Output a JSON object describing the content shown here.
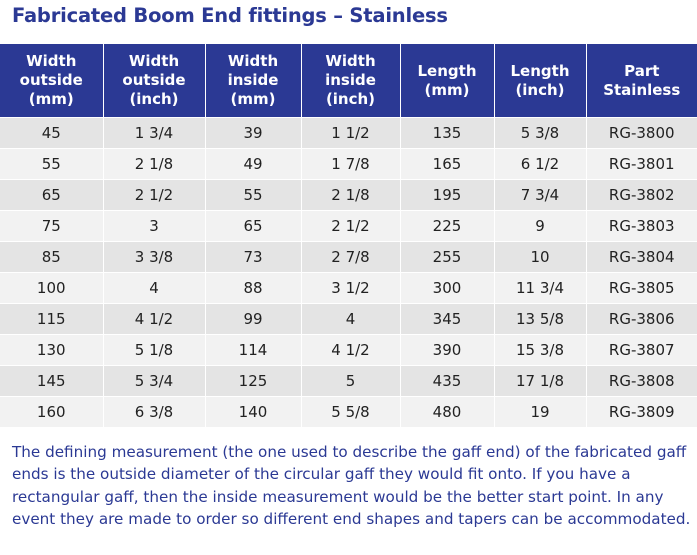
{
  "title": "Fabricated Boom End fittings – Stainless",
  "table": {
    "headers": [
      "Width\noutside\n(mm)",
      "Width\noutside\n(inch)",
      "Width\ninside\n(mm)",
      "Width\ninside\n(inch)",
      "Length\n(mm)",
      "Length\n(inch)",
      "Part\nStainless"
    ],
    "rows": [
      [
        "45",
        "1 3/4",
        "39",
        "1 1/2",
        "135",
        "5 3/8",
        "RG-3800"
      ],
      [
        "55",
        "2 1/8",
        "49",
        "1 7/8",
        "165",
        "6 1/2",
        "RG-3801"
      ],
      [
        "65",
        "2 1/2",
        "55",
        "2 1/8",
        "195",
        "7 3/4",
        "RG-3802"
      ],
      [
        "75",
        "3",
        "65",
        "2 1/2",
        "225",
        "9",
        "RG-3803"
      ],
      [
        "85",
        "3 3/8",
        "73",
        "2 7/8",
        "255",
        "10",
        "RG-3804"
      ],
      [
        "100",
        "4",
        "88",
        "3 1/2",
        "300",
        "11 3/4",
        "RG-3805"
      ],
      [
        "115",
        "4 1/2",
        "99",
        "4",
        "345",
        "13 5/8",
        "RG-3806"
      ],
      [
        "130",
        "5 1/8",
        "114",
        "4 1/2",
        "390",
        "15 3/8",
        "RG-3807"
      ],
      [
        "145",
        "5 3/4",
        "125",
        "5",
        "435",
        "17 1/8",
        "RG-3808"
      ],
      [
        "160",
        "6 3/8",
        "140",
        "5 5/8",
        "480",
        "19",
        "RG-3809"
      ]
    ]
  },
  "note": "The defining measurement (the one used to describe the gaff end) of the fabricated gaff ends is the outside diameter of the circular gaff they would fit onto. If you have a rectangular gaff, then the inside measurement would be the better start point. In any event they are made to order so different end shapes and tapers can be accommodated.",
  "colors": {
    "header_bg": "#2b3994",
    "row_odd": "#e4e4e4",
    "row_even": "#f2f2f2",
    "text_accent": "#2b3994"
  }
}
